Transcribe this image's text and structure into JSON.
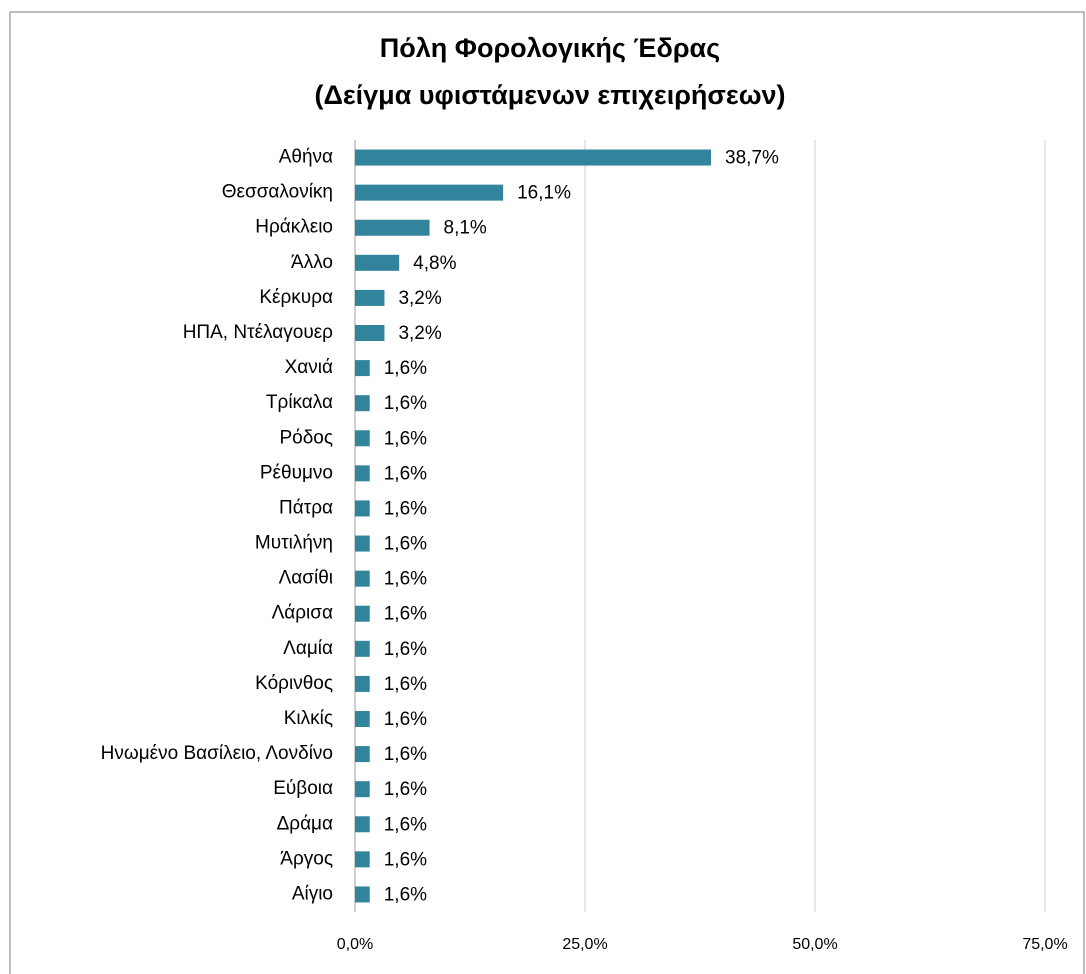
{
  "chart_data": {
    "type": "hbar",
    "title": "Πόλη Φορολογικής Έδρας",
    "subtitle": "(Δείγμα υφιστάμενων επιχειρήσεων)",
    "categories": [
      "Αθήνα",
      "Θεσσαλονίκη",
      "Ηράκλειο",
      "Άλλο",
      "Κέρκυρα",
      "ΗΠΑ, Ντέλαγουερ",
      "Χανιά",
      "Τρίκαλα",
      "Ρόδος",
      "Ρέθυμνο",
      "Πάτρα",
      "Μυτιλήνη",
      "Λασίθι",
      "Λάρισα",
      "Λαμία",
      "Κόρινθος",
      "Κιλκίς",
      "Ηνωμένο Βασίλειο, Λονδίνο",
      "Εύβοια",
      "Δράμα",
      "Άργος",
      "Αίγιο"
    ],
    "values": [
      38.7,
      16.1,
      8.1,
      4.8,
      3.2,
      3.2,
      1.6,
      1.6,
      1.6,
      1.6,
      1.6,
      1.6,
      1.6,
      1.6,
      1.6,
      1.6,
      1.6,
      1.6,
      1.6,
      1.6,
      1.6,
      1.6
    ],
    "value_labels": [
      "38,7%",
      "16,1%",
      "8,1%",
      "4,8%",
      "3,2%",
      "3,2%",
      "1,6%",
      "1,6%",
      "1,6%",
      "1,6%",
      "1,6%",
      "1,6%",
      "1,6%",
      "1,6%",
      "1,6%",
      "1,6%",
      "1,6%",
      "1,6%",
      "1,6%",
      "1,6%",
      "1,6%",
      "1,6%"
    ],
    "color": "#31849b",
    "xlim": [
      0,
      75
    ],
    "xticks": [
      {
        "value": 0,
        "label": "0,0%"
      },
      {
        "value": 25,
        "label": "25,0%"
      },
      {
        "value": 50,
        "label": "50,0%"
      },
      {
        "value": 75,
        "label": "75,0%"
      }
    ],
    "grid": true
  }
}
